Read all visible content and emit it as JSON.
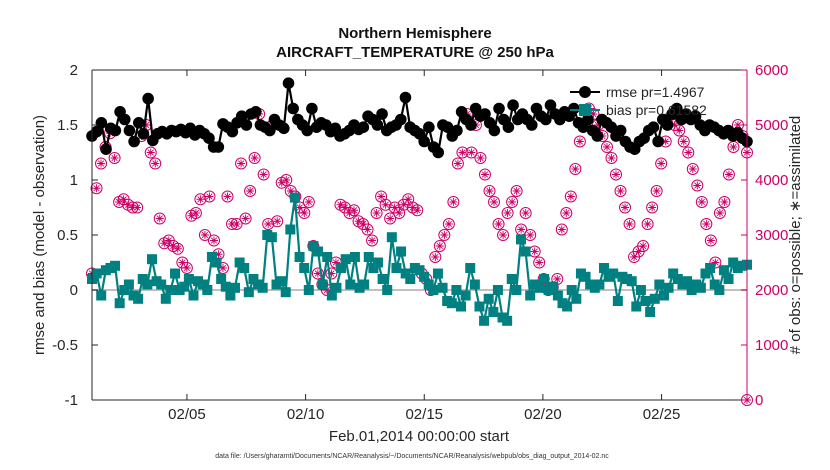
{
  "chart_data": {
    "type": "line",
    "title": "Northern Hemisphere",
    "subtitle": "AIRCRAFT_TEMPERATURE @ 250 hPa",
    "xlabel": "Feb.01,2014 00:00:00 start",
    "ylabel_left": "rmse and bias (model - observation)",
    "ylabel_right": "# of obs: o=possible; ∗=assimilated",
    "footnote": "data file: /Users/gharamti/Documents/NCAR/Reanalysis/~/Documents/NCAR/Reanalysis/webpub/obs_diag_output_2014-02.nc",
    "xlim": [
      1,
      28.6
    ],
    "ylim_left": [
      -1,
      2
    ],
    "ylim_right": [
      0,
      6000
    ],
    "x_ticks": [
      5,
      10,
      15,
      20,
      25
    ],
    "x_tick_labels": [
      "02/05",
      "02/10",
      "02/15",
      "02/20",
      "02/25"
    ],
    "y_ticks_left": [
      "-1",
      "-0.5",
      "0",
      "0.5",
      "1",
      "1.5",
      "2"
    ],
    "y_ticks_right": [
      "0",
      "1000",
      "2000",
      "3000",
      "4000",
      "5000",
      "6000"
    ],
    "legend_placement": "top-right",
    "colors": {
      "rmse": "#000000",
      "bias": "#008080",
      "obs": "#cc0066",
      "zero": "#c0c0c0"
    },
    "series": [
      {
        "name": "rmse pr=1.4967",
        "marker": "circle",
        "values": [
          1.4,
          1.44,
          1.52,
          1.28,
          1.47,
          1.45,
          1.62,
          1.55,
          1.45,
          1.35,
          1.52,
          1.42,
          1.74,
          1.36,
          1.42,
          1.44,
          1.42,
          1.45,
          1.44,
          1.46,
          1.43,
          1.47,
          1.41,
          1.45,
          1.42,
          1.38,
          1.3,
          1.3,
          1.51,
          1.48,
          1.44,
          1.52,
          1.58,
          1.5,
          1.6,
          1.62,
          1.5,
          1.48,
          1.45,
          1.55,
          1.5,
          1.47,
          1.88,
          1.65,
          1.55,
          1.5,
          1.45,
          1.65,
          1.48,
          1.52,
          1.5,
          1.44,
          1.47,
          1.4,
          1.42,
          1.45,
          1.5,
          1.46,
          1.48,
          1.58,
          1.55,
          1.5,
          1.6,
          1.45,
          1.48,
          1.5,
          1.55,
          1.75,
          1.48,
          1.45,
          1.42,
          1.35,
          1.48,
          1.3,
          1.25,
          1.5,
          1.48,
          1.4,
          1.45,
          1.62,
          1.55,
          1.5,
          1.65,
          1.58,
          1.6,
          1.52,
          1.45,
          1.65,
          1.55,
          1.48,
          1.68,
          1.55,
          1.6,
          1.55,
          1.5,
          1.65,
          1.58,
          1.55,
          1.68,
          1.6,
          1.55,
          1.62,
          1.58,
          1.65,
          1.52,
          1.48,
          1.55,
          1.45,
          1.4,
          1.55,
          1.52,
          1.48,
          1.4,
          1.45,
          1.35,
          1.3,
          1.28,
          1.35,
          1.38,
          1.45,
          1.48,
          1.35,
          1.55,
          1.5,
          1.6,
          1.65,
          1.55,
          1.6,
          1.55,
          1.58,
          1.5,
          1.45,
          1.5,
          1.48,
          1.45,
          1.42,
          1.45,
          1.4,
          1.43,
          1.38,
          1.35
        ]
      },
      {
        "name": "bias pr=0.61582",
        "marker": "square",
        "values": [
          0.1,
          0.15,
          -0.05,
          0.18,
          0.2,
          0.22,
          -0.12,
          0.0,
          0.05,
          -0.05,
          -0.08,
          0.1,
          0.05,
          0.28,
          0.08,
          0.05,
          -0.08,
          0.0,
          0.15,
          0.0,
          0.03,
          0.1,
          -0.05,
          0.08,
          0.05,
          0.0,
          0.3,
          0.25,
          0.1,
          0.03,
          -0.05,
          0.02,
          0.25,
          0.2,
          -0.02,
          0.1,
          0.05,
          0.02,
          0.5,
          0.48,
          0.05,
          0.08,
          -0.02,
          0.55,
          0.84,
          0.3,
          0.2,
          0.0,
          0.4,
          0.35,
          0.05,
          0.3,
          -0.05,
          0.02,
          0.2,
          0.28,
          0.05,
          0.3,
          0.02,
          0.05,
          0.3,
          0.2,
          0.25,
          0.1,
          0.0,
          0.48,
          0.2,
          0.35,
          0.15,
          0.1,
          0.2,
          0.18,
          0.12,
          0.05,
          0.0,
          0.15,
          0.02,
          -0.1,
          -0.12,
          0.0,
          -0.15,
          -0.05,
          0.2,
          0.05,
          -0.15,
          -0.28,
          -0.08,
          -0.2,
          0.0,
          -0.25,
          -0.28,
          0.1,
          0.0,
          0.46,
          0.35,
          -0.05,
          0.05,
          0.02,
          0.1,
          0.0,
          0.03,
          -0.05,
          -0.12,
          -0.15,
          0.0,
          -0.08,
          0.15,
          0.12,
          0.05,
          0.02,
          0.05,
          0.2,
          0.12,
          0.15,
          -0.1,
          0.12,
          0.1,
          0.08,
          -0.15,
          0.0,
          -0.1,
          -0.2,
          -0.08,
          0.05,
          -0.05,
          0.02,
          0.15,
          0.1,
          0.05,
          0.08,
          0.0,
          0.05,
          0.02,
          0.15,
          0.2,
          0.05,
          0.0,
          0.18,
          0.1,
          0.25,
          0.2,
          0.22,
          0.23
        ]
      },
      {
        "name": "possible",
        "axis": "right",
        "marker": "circle-open",
        "values": [
          2300,
          3850,
          4300,
          4600,
          4850,
          4400,
          3600,
          3650,
          3550,
          3500,
          3500,
          4800,
          5000,
          4500,
          4300,
          3300,
          2850,
          2900,
          2800,
          2750,
          2500,
          2400,
          3350,
          3400,
          3650,
          3000,
          3700,
          2900,
          2650,
          2400,
          3700,
          3200,
          3200,
          4300,
          3300,
          3800,
          4400,
          5200,
          4100,
          3200,
          5000,
          3250,
          3950,
          4000,
          3800,
          3700,
          3500,
          3400,
          3600,
          2800,
          2300,
          2100,
          2000,
          2300,
          2500,
          3550,
          3500,
          3400,
          3450,
          3250,
          3200,
          3100,
          2900,
          3400,
          3700,
          3550,
          3300,
          3500,
          3400,
          3550,
          3650,
          3500,
          3450,
          2300,
          2200,
          2000,
          2600,
          2800,
          3000,
          3200,
          3600,
          4300,
          4500,
          5200,
          4500,
          5000,
          4400,
          4100,
          3800,
          3600,
          3200,
          3000,
          3400,
          3600,
          3800,
          3100,
          3400,
          3000,
          2700,
          2500,
          2200,
          2000,
          2050,
          2200,
          3100,
          3400,
          3700,
          4200,
          4700,
          5000,
          5300,
          5200,
          5000,
          4800,
          4600,
          4400,
          4100,
          3800,
          3500,
          3200,
          2600,
          2700,
          2800,
          3200,
          3500,
          3800,
          4300,
          4700,
          5100,
          5000,
          4900,
          4700,
          4500,
          4200,
          3900,
          3600,
          3200,
          2900,
          2500,
          3400,
          3600,
          4100,
          4600,
          5000,
          4800,
          4500
        ]
      },
      {
        "name": "assimilated",
        "axis": "right",
        "marker": "asterisk",
        "values": [
          2300,
          3850,
          4300,
          4600,
          4850,
          4400,
          3600,
          3650,
          3550,
          3500,
          3500,
          4800,
          5000,
          4500,
          4300,
          3300,
          2850,
          2900,
          2800,
          2750,
          2500,
          2400,
          3350,
          3400,
          3650,
          3000,
          3700,
          2900,
          2650,
          2400,
          3700,
          3200,
          3200,
          4300,
          3300,
          3800,
          4400,
          5200,
          4100,
          3200,
          5000,
          3250,
          3950,
          4000,
          3800,
          3700,
          3500,
          3400,
          3600,
          2800,
          2300,
          2100,
          2000,
          2300,
          2500,
          3550,
          3500,
          3400,
          3450,
          3250,
          3200,
          3100,
          2900,
          3400,
          3700,
          3550,
          3300,
          3500,
          3400,
          3550,
          3650,
          3500,
          3450,
          2300,
          2200,
          2000,
          2600,
          2800,
          3000,
          3200,
          3600,
          4300,
          4500,
          5200,
          4500,
          5000,
          4400,
          4100,
          3800,
          3600,
          3200,
          3000,
          3400,
          3600,
          3800,
          3100,
          3400,
          3000,
          2700,
          2500,
          2200,
          2000,
          2050,
          2200,
          3100,
          3400,
          3700,
          4200,
          4700,
          5000,
          5300,
          5200,
          5000,
          4800,
          4600,
          4400,
          4100,
          3800,
          3500,
          3200,
          2600,
          2700,
          2800,
          3200,
          3500,
          3800,
          4300,
          4700,
          5100,
          5000,
          4900,
          4700,
          4500,
          4200,
          3900,
          3600,
          3200,
          2900,
          2500,
          3400,
          3600,
          4100,
          4600,
          5000,
          4800,
          4500
        ]
      }
    ]
  }
}
